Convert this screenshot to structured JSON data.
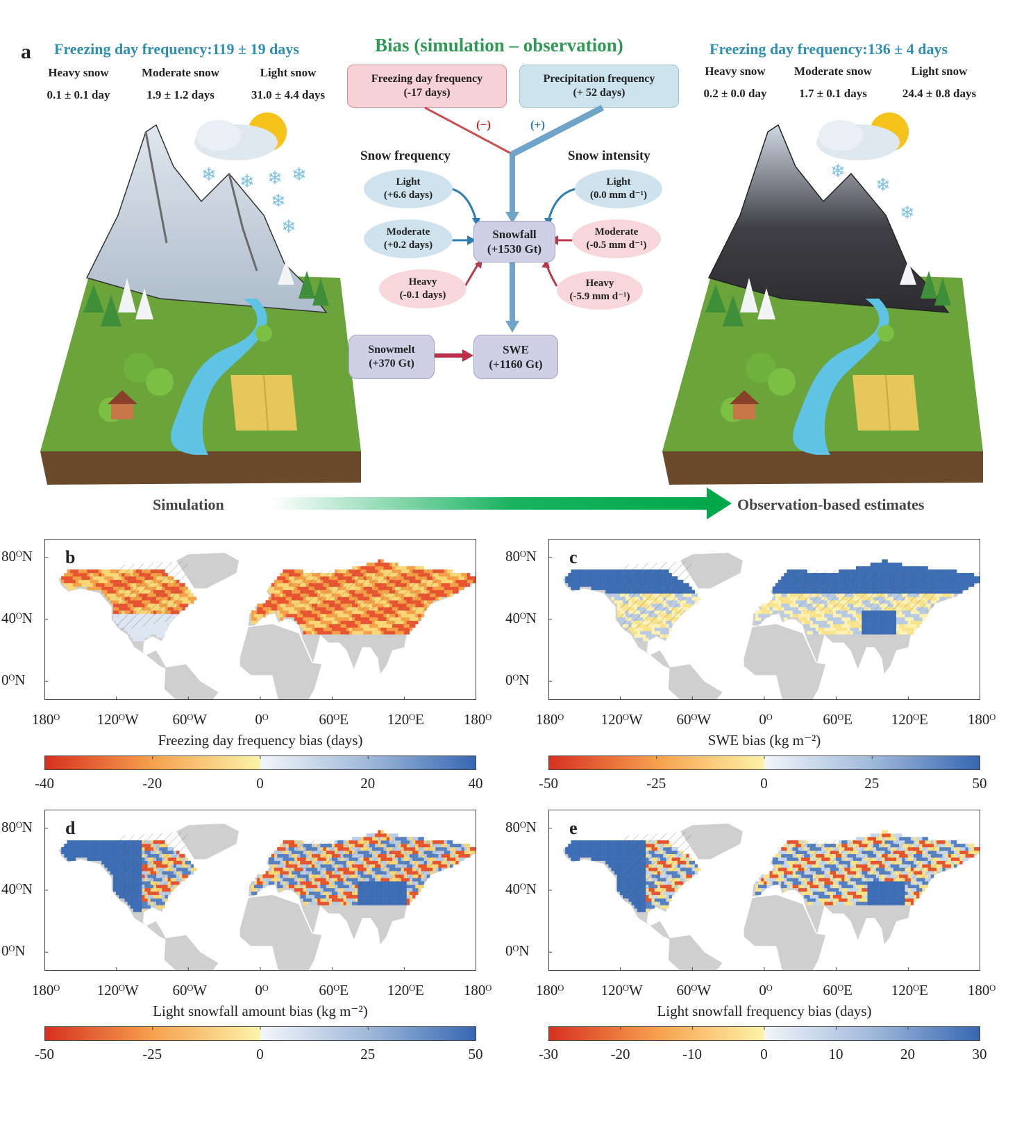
{
  "panel_a": {
    "letter": "a",
    "left": {
      "title": "Freezing day frequency:119 ± 19 days",
      "cols": [
        {
          "label": "Heavy snow",
          "value": "0.1 ± 0.1 day"
        },
        {
          "label": "Moderate snow",
          "value": "1.9 ± 1.2 days"
        },
        {
          "label": "Light snow",
          "value": "31.0 ± 4.4 days"
        }
      ],
      "caption": "Simulation"
    },
    "right": {
      "title": "Freezing day frequency:136 ± 4 days",
      "cols": [
        {
          "label": "Heavy snow",
          "value": "0.2 ± 0.0 day"
        },
        {
          "label": "Moderate snow",
          "value": "1.7 ± 0.1 days"
        },
        {
          "label": "Light snow",
          "value": "24.4 ± 0.8 days"
        }
      ],
      "caption": "Observation-based estimates"
    },
    "bias_title": "Bias (simulation – observation)",
    "freezing_box": {
      "line1": "Freezing day frequency",
      "line2": "(-17 days)"
    },
    "precip_box": {
      "line1": "Precipitation frequency",
      "line2": "(+ 52 days)"
    },
    "minus_sign": "(−)",
    "plus_sign": "(+)",
    "snow_frequency_title": "Snow frequency",
    "snow_intensity_title": "Snow intensity",
    "freq_light": {
      "line1": "Light",
      "line2": "(+6.6 days)"
    },
    "freq_moderate": {
      "line1": "Moderate",
      "line2": "(+0.2 days)"
    },
    "freq_heavy": {
      "line1": "Heavy",
      "line2": "(-0.1 days)"
    },
    "int_light": {
      "line1": "Light",
      "line2": "(0.0 mm d⁻¹)"
    },
    "int_moderate": {
      "line1": "Moderate",
      "line2": "(-0.5 mm d⁻¹)"
    },
    "int_heavy": {
      "line1": "Heavy",
      "line2": "(-5.9 mm d⁻¹)"
    },
    "snowfall": {
      "line1": "Snowfall",
      "line2": "(+1530 Gt)"
    },
    "snowmelt": {
      "line1": "Snowmelt",
      "line2": "(+370 Gt)"
    },
    "swe": {
      "line1": "SWE",
      "line2": "(+1160 Gt)"
    }
  },
  "maps": {
    "lat_ticks": [
      "80ᴼN",
      "40ᴼN",
      "0ᴼN"
    ],
    "lon_ticks": [
      "180ᴼ",
      "120ᴼW",
      "60ᴼW",
      "0ᴼ",
      "60ᴼE",
      "120ᴼE",
      "180ᴼ"
    ],
    "b": {
      "letter": "b",
      "title": "Freezing day frequency bias (days)",
      "ticks": [
        "-40",
        "-20",
        "0",
        "20",
        "40"
      ]
    },
    "c": {
      "letter": "c",
      "title": "SWE bias (kg m⁻²)",
      "ticks": [
        "-50",
        "-25",
        "0",
        "25",
        "50"
      ]
    },
    "d": {
      "letter": "d",
      "title": "Light snowfall amount bias (kg m⁻²)",
      "ticks": [
        "-50",
        "-25",
        "0",
        "25",
        "50"
      ]
    },
    "e": {
      "letter": "e",
      "title": "Light snowfall frequency bias (days)",
      "ticks": [
        "-30",
        "-20",
        "-10",
        "0",
        "10",
        "20",
        "30"
      ]
    }
  },
  "colors": {
    "red": "#d7301f",
    "yellow": "#fdf0a6",
    "blue": "#3a6db5",
    "land": "#cfcfcf"
  }
}
